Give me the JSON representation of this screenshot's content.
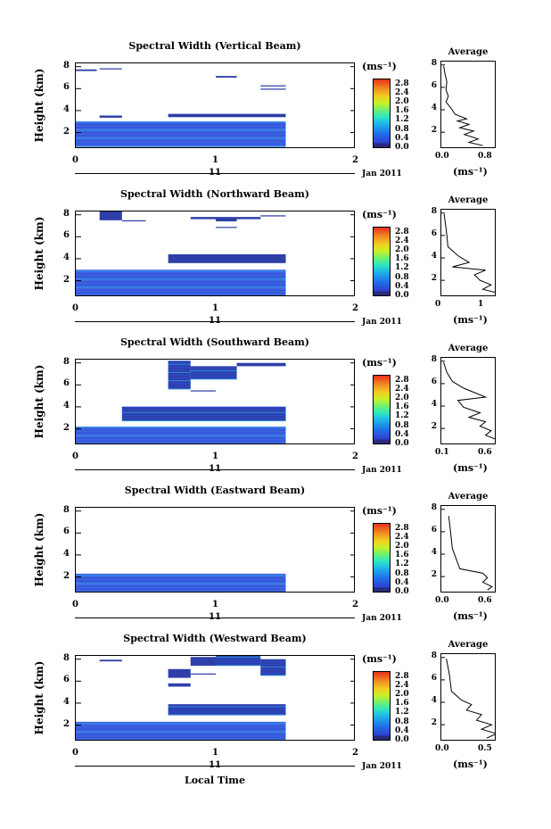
{
  "chart_data": [
    {
      "type": "heatmap",
      "title": "Spectral Width (Vertical Beam)",
      "ylabel": "Height (km)",
      "y_ticks": [
        "2",
        "4",
        "6",
        "8"
      ],
      "x_ticks": [
        "0",
        "1",
        "2"
      ],
      "day_tick": "11",
      "date": "Jan 2011",
      "colorbar_unit": "(ms⁻¹)",
      "colorbar_ticks": [
        "0.0",
        "0.4",
        "0.8",
        "1.2",
        "1.6",
        "2.0",
        "2.4",
        "2.8"
      ],
      "avg_title": "Average",
      "avg_x_ticks": [
        "0.0",
        "0.8"
      ],
      "avg_unit": "(ms⁻¹)",
      "avg_y_ticks": [
        "2",
        "4",
        "6",
        "8"
      ],
      "ylim": [
        0.5,
        8.3
      ],
      "xlim": [
        0,
        2
      ],
      "avg_xlim": [
        0,
        1.2
      ],
      "cells": [
        [
          0,
          0.15,
          7.6,
          0.15,
          "#2e3fa8"
        ],
        [
          0.17,
          0.33,
          7.75,
          0.1,
          "#2e3fa8"
        ],
        [
          1.0,
          1.15,
          7.0,
          0.15,
          "#2e3fa8"
        ],
        [
          1.32,
          1.5,
          6.2,
          0.1,
          "#2e3fa8"
        ],
        [
          1.32,
          1.5,
          5.9,
          0.1,
          "#2e3fa8"
        ],
        [
          0.17,
          0.33,
          3.35,
          0.2,
          "#2e3fa8"
        ],
        [
          0.66,
          1.5,
          3.4,
          0.3,
          "#2e3fa8"
        ],
        [
          0,
          1.5,
          0.7,
          2.3,
          "#3f63e0"
        ]
      ],
      "avg_profile": [
        [
          0.05,
          7.9
        ],
        [
          0.08,
          7.2
        ],
        [
          0.12,
          6.5
        ],
        [
          0.1,
          5.8
        ],
        [
          0.15,
          5.2
        ],
        [
          0.1,
          4.7
        ],
        [
          0.2,
          4.2
        ],
        [
          0.3,
          3.6
        ],
        [
          0.55,
          3.2
        ],
        [
          0.35,
          3.0
        ],
        [
          0.6,
          2.7
        ],
        [
          0.4,
          2.4
        ],
        [
          0.7,
          2.1
        ],
        [
          0.5,
          1.8
        ],
        [
          0.8,
          1.4
        ],
        [
          0.6,
          1.1
        ],
        [
          0.9,
          0.8
        ]
      ]
    },
    {
      "type": "heatmap",
      "title": "Spectral Width (Northward Beam)",
      "ylabel": "Height (km)",
      "y_ticks": [
        "2",
        "4",
        "6",
        "8"
      ],
      "x_ticks": [
        "0",
        "1",
        "2"
      ],
      "day_tick": "11",
      "date": "Jan 2011",
      "colorbar_unit": "(ms⁻¹)",
      "colorbar_ticks": [
        "0.0",
        "0.4",
        "0.8",
        "1.2",
        "1.6",
        "2.0",
        "2.4",
        "2.8"
      ],
      "avg_title": "Average",
      "avg_x_ticks": [
        "0",
        "1"
      ],
      "avg_unit": "(ms⁻¹)",
      "avg_y_ticks": [
        "2",
        "4",
        "6",
        "8"
      ],
      "ylim": [
        0.5,
        8.3
      ],
      "xlim": [
        0,
        2
      ],
      "avg_xlim": [
        0,
        1
      ],
      "cells": [
        [
          0.17,
          0.33,
          7.5,
          0.8,
          "#2e3fa8"
        ],
        [
          0.33,
          0.5,
          7.4,
          0.1,
          "#2e3fa8"
        ],
        [
          0.82,
          1.0,
          7.6,
          0.2,
          "#2e3fa8"
        ],
        [
          1.0,
          1.15,
          7.4,
          0.4,
          "#2e3fa8"
        ],
        [
          1.15,
          1.32,
          7.6,
          0.2,
          "#2e3fa8"
        ],
        [
          1.32,
          1.5,
          7.85,
          0.1,
          "#2e3fa8"
        ],
        [
          1.0,
          1.15,
          6.8,
          0.1,
          "#2e3fa8"
        ],
        [
          0.66,
          1.5,
          3.6,
          0.8,
          "#2e3fa8"
        ],
        [
          0,
          1.5,
          0.6,
          2.4,
          "#3f63e0"
        ]
      ],
      "avg_profile": [
        [
          0.05,
          7.9
        ],
        [
          0.08,
          6.8
        ],
        [
          0.1,
          6.0
        ],
        [
          0.12,
          5.0
        ],
        [
          0.3,
          4.2
        ],
        [
          0.5,
          3.6
        ],
        [
          0.2,
          3.2
        ],
        [
          0.8,
          2.9
        ],
        [
          0.6,
          2.5
        ],
        [
          0.7,
          2.0
        ],
        [
          0.9,
          1.6
        ],
        [
          0.75,
          1.2
        ],
        [
          1.0,
          0.9
        ]
      ]
    },
    {
      "type": "heatmap",
      "title": "Spectral Width (Southward Beam)",
      "ylabel": "Height (km)",
      "y_ticks": [
        "2",
        "4",
        "6",
        "8"
      ],
      "x_ticks": [
        "0",
        "1",
        "2"
      ],
      "day_tick": "11",
      "date": "Jan 2011",
      "colorbar_unit": "(ms⁻¹)",
      "colorbar_ticks": [
        "0.0",
        "0.4",
        "0.8",
        "1.2",
        "1.6",
        "2.0",
        "2.4",
        "2.8"
      ],
      "avg_title": "Average",
      "avg_x_ticks": [
        "0.1",
        "0.6"
      ],
      "avg_unit": "(ms⁻¹)",
      "avg_y_ticks": [
        "2",
        "4",
        "6",
        "8"
      ],
      "ylim": [
        0.5,
        8.3
      ],
      "xlim": [
        0,
        2
      ],
      "avg_xlim": [
        0.1,
        0.6
      ],
      "cells": [
        [
          0.66,
          0.82,
          5.6,
          2.6,
          "#2e3fa8"
        ],
        [
          0.82,
          1.15,
          6.5,
          1.2,
          "#2e3fa8"
        ],
        [
          0.82,
          1.0,
          5.4,
          0.1,
          "#2e3fa8"
        ],
        [
          1.15,
          1.5,
          7.7,
          0.3,
          "#2e3fa8"
        ],
        [
          0.33,
          1.5,
          2.7,
          1.3,
          "#2e3fa8"
        ],
        [
          0,
          1.5,
          0.6,
          1.6,
          "#3f63e0"
        ]
      ],
      "avg_profile": [
        [
          0.12,
          7.9
        ],
        [
          0.15,
          7.0
        ],
        [
          0.2,
          6.2
        ],
        [
          0.3,
          5.6
        ],
        [
          0.5,
          4.8
        ],
        [
          0.25,
          4.5
        ],
        [
          0.3,
          3.9
        ],
        [
          0.45,
          3.4
        ],
        [
          0.35,
          3.0
        ],
        [
          0.5,
          2.6
        ],
        [
          0.45,
          2.2
        ],
        [
          0.55,
          1.8
        ],
        [
          0.5,
          1.4
        ],
        [
          0.6,
          1.0
        ]
      ]
    },
    {
      "type": "heatmap",
      "title": "Spectral Width (Eastward Beam)",
      "ylabel": "Height (km)",
      "y_ticks": [
        "2",
        "4",
        "6",
        "8"
      ],
      "x_ticks": [
        "0",
        "1",
        "2"
      ],
      "day_tick": "11",
      "date": "Jan 2011",
      "colorbar_unit": "(ms⁻¹)",
      "colorbar_ticks": [
        "0.0",
        "0.4",
        "0.8",
        "1.2",
        "1.6",
        "2.0",
        "2.4",
        "2.8"
      ],
      "avg_title": "Average",
      "avg_x_ticks": [
        "0.0",
        "0.6"
      ],
      "avg_unit": "(ms⁻¹)",
      "avg_y_ticks": [
        "2",
        "4",
        "6",
        "8"
      ],
      "ylim": [
        0.5,
        8.3
      ],
      "xlim": [
        0,
        2
      ],
      "avg_xlim": [
        0,
        0.6
      ],
      "cells": [
        [
          0,
          1.5,
          0.6,
          1.7,
          "#3f63e0"
        ]
      ],
      "avg_profile": [
        [
          0.08,
          7.4
        ],
        [
          0.12,
          4.5
        ],
        [
          0.2,
          2.7
        ],
        [
          0.45,
          2.3
        ],
        [
          0.5,
          1.9
        ],
        [
          0.45,
          1.5
        ],
        [
          0.55,
          1.1
        ],
        [
          0.5,
          0.8
        ]
      ]
    },
    {
      "type": "heatmap",
      "title": "Spectral Width (Westward Beam)",
      "ylabel": "Height (km)",
      "y_ticks": [
        "2",
        "4",
        "6",
        "8"
      ],
      "x_ticks": [
        "0",
        "1",
        "2"
      ],
      "day_tick": "11",
      "date": "Jan 2011",
      "colorbar_unit": "(ms⁻¹)",
      "colorbar_ticks": [
        "0.0",
        "0.4",
        "0.8",
        "1.2",
        "1.6",
        "2.0",
        "2.4",
        "2.8"
      ],
      "avg_title": "Average",
      "avg_x_ticks": [
        "0.0",
        "0.5"
      ],
      "avg_unit": "(ms⁻¹)",
      "avg_y_ticks": [
        "2",
        "4",
        "6",
        "8"
      ],
      "ylim": [
        0.5,
        8.3
      ],
      "xlim": [
        0,
        2
      ],
      "avg_xlim": [
        0,
        0.55
      ],
      "cells": [
        [
          0.17,
          0.33,
          7.8,
          0.15,
          "#2e3fa8"
        ],
        [
          0.82,
          1.0,
          7.4,
          0.8,
          "#2e3fa8"
        ],
        [
          1.0,
          1.32,
          7.4,
          0.9,
          "#2e3fa8"
        ],
        [
          1.32,
          1.5,
          6.5,
          1.5,
          "#2e3fa8"
        ],
        [
          0.66,
          0.82,
          6.3,
          0.8,
          "#2e3fa8"
        ],
        [
          0.66,
          0.82,
          5.5,
          0.3,
          "#2e3fa8"
        ],
        [
          0.82,
          1.0,
          6.6,
          0.1,
          "#2e3fa8"
        ],
        [
          0.66,
          1.5,
          2.9,
          1.0,
          "#2e3fa8"
        ],
        [
          0,
          1.5,
          0.6,
          1.7,
          "#3f63e0"
        ]
      ],
      "avg_profile": [
        [
          0.05,
          7.9
        ],
        [
          0.08,
          6.5
        ],
        [
          0.1,
          5.0
        ],
        [
          0.2,
          4.2
        ],
        [
          0.3,
          3.8
        ],
        [
          0.25,
          3.3
        ],
        [
          0.4,
          2.9
        ],
        [
          0.35,
          2.4
        ],
        [
          0.5,
          2.0
        ],
        [
          0.4,
          1.6
        ],
        [
          0.55,
          1.2
        ],
        [
          0.45,
          0.8
        ]
      ]
    }
  ],
  "xlabel": "Local Time"
}
